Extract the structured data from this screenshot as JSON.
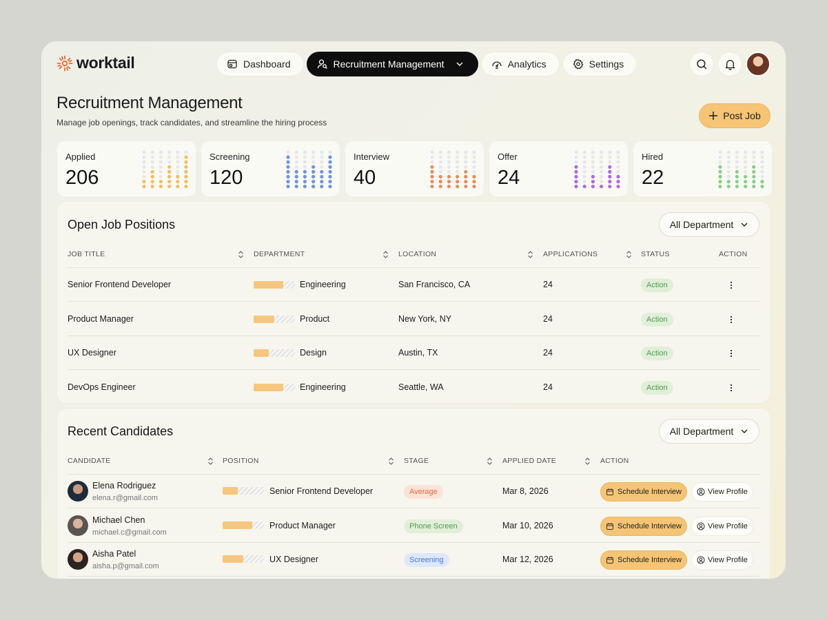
{
  "app": {
    "name": "worktail"
  },
  "nav": [
    {
      "label": "Dashboard",
      "icon": "dashboard-icon",
      "active": false
    },
    {
      "label": "Recruitment Management",
      "icon": "user-search-icon",
      "active": true
    },
    {
      "label": "Analytics",
      "icon": "gauge-icon",
      "active": false
    },
    {
      "label": "Settings",
      "icon": "gear-icon",
      "active": false
    }
  ],
  "header": {
    "title": "Recruitment Management",
    "subtitle": "Manage job openings, track candidates, and streamline the hiring process",
    "post_label": "Post Job"
  },
  "stats": [
    {
      "label": "Applied",
      "value": "206",
      "color": "#f4bd5c",
      "fill_levels": [
        0.25,
        0.5,
        0.25,
        0.62,
        0.37,
        0.87
      ]
    },
    {
      "label": "Screening",
      "value": "120",
      "color": "#6d93e6",
      "fill_levels": [
        0.87,
        0.5,
        0.5,
        0.62,
        0.5,
        0.87
      ]
    },
    {
      "label": "Interview",
      "value": "40",
      "color": "#ee8a56",
      "fill_levels": [
        0.62,
        0.37,
        0.37,
        0.37,
        0.5,
        0.37
      ]
    },
    {
      "label": "Offer",
      "value": "24",
      "color": "#b167e3",
      "fill_levels": [
        0.62,
        0.12,
        0.37,
        0.12,
        0.62,
        0.37
      ]
    },
    {
      "label": "Hired",
      "value": "22",
      "color": "#86d086",
      "fill_levels": [
        0.62,
        0.25,
        0.5,
        0.37,
        0.62,
        0.25
      ]
    }
  ],
  "jobs": {
    "title": "Open Job Positions",
    "filter": "All Department",
    "columns": [
      "Job Title",
      "Department",
      "Location",
      "Applications",
      "Status",
      "Action"
    ],
    "rows": [
      {
        "title": "Senior Frontend Developer",
        "department": "Engineering",
        "dept_level": 0.72,
        "location": "San Francisco, CA",
        "applications": "24",
        "status": "Action"
      },
      {
        "title": "Product Manager",
        "department": "Product",
        "dept_level": 0.5,
        "location": "New York, NY",
        "applications": "24",
        "status": "Action"
      },
      {
        "title": "UX Designer",
        "department": "Design",
        "dept_level": 0.36,
        "location": "Austin, TX",
        "applications": "24",
        "status": "Action"
      },
      {
        "title": "DevOps Engineer",
        "department": "Engineering",
        "dept_level": 0.72,
        "location": "Seattle, WA",
        "applications": "24",
        "status": "Action"
      }
    ]
  },
  "candidates": {
    "title": "Recent Candidates",
    "filter": "All Department",
    "columns": [
      "Candidate",
      "Position",
      "Stage",
      "Applied Date",
      "Action"
    ],
    "rows": [
      {
        "name": "Elena Rodriguez",
        "email": "elena.r@gmail.com",
        "position": "Senior Frontend Developer",
        "pos_level": 0.36,
        "stage": "Average",
        "stage_tone": "orange",
        "date": "Mar 8, 2026",
        "schedule": "Schedule Interview",
        "view": "View Profile"
      },
      {
        "name": "Michael Chen",
        "email": "michael.c@gmail.com",
        "position": "Product Manager",
        "pos_level": 0.72,
        "stage": "Phone Screen",
        "stage_tone": "green",
        "date": "Mar 10, 2026",
        "schedule": "Schedule Interview",
        "view": "View Profile"
      },
      {
        "name": "Aisha Patel",
        "email": "aisha.p@gmail.com",
        "position": "UX Designer",
        "pos_level": 0.5,
        "stage": "Screening",
        "stage_tone": "blue",
        "date": "Mar 12, 2026",
        "schedule": "Schedule Interview",
        "view": "View Profile"
      }
    ]
  }
}
